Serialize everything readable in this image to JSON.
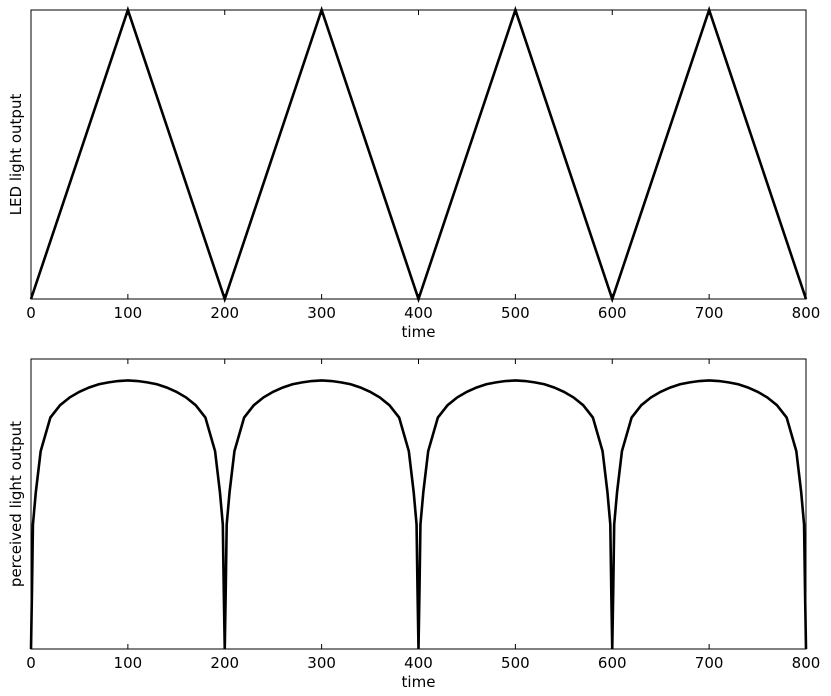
{
  "chart_data": [
    {
      "type": "line",
      "title": "",
      "xlabel": "time",
      "ylabel": "LED light output",
      "xlim": [
        0,
        800
      ],
      "xticks": [
        "0",
        "100",
        "200",
        "300",
        "400",
        "500",
        "600",
        "700",
        "800"
      ],
      "yticks": [],
      "ylim": [
        0,
        1
      ],
      "grid": false,
      "line_color": "#000000",
      "series": [
        {
          "x": [
            0,
            100,
            200,
            300,
            400,
            500,
            600,
            700,
            800
          ],
          "y": [
            0,
            1,
            0,
            1,
            0,
            1,
            0,
            1,
            0
          ]
        }
      ]
    },
    {
      "type": "line",
      "title": "",
      "xlabel": "time",
      "ylabel": "perceived light output",
      "xlim": [
        0,
        800
      ],
      "xticks": [
        "0",
        "100",
        "200",
        "300",
        "400",
        "500",
        "600",
        "700",
        "800"
      ],
      "yticks": [],
      "ylim": [
        0,
        1.08
      ],
      "grid": false,
      "line_color": "#000000",
      "series": [
        {
          "x": [
            0,
            1,
            2,
            5,
            10,
            20,
            30,
            40,
            50,
            60,
            70,
            80,
            90,
            100,
            110,
            120,
            130,
            140,
            150,
            160,
            170,
            180,
            190,
            195,
            198,
            199,
            200,
            201,
            202,
            205,
            210,
            220,
            230,
            240,
            250,
            260,
            270,
            280,
            290,
            300,
            310,
            320,
            330,
            340,
            350,
            360,
            370,
            380,
            390,
            395,
            398,
            399,
            400,
            401,
            402,
            405,
            410,
            420,
            430,
            440,
            450,
            460,
            470,
            480,
            490,
            500,
            510,
            520,
            530,
            540,
            550,
            560,
            570,
            580,
            590,
            595,
            598,
            599,
            600,
            601,
            602,
            605,
            610,
            620,
            630,
            640,
            650,
            660,
            670,
            680,
            690,
            700,
            710,
            720,
            730,
            740,
            750,
            760,
            770,
            780,
            790,
            795,
            798,
            799,
            800
          ],
          "y": [
            0,
            0.215,
            0.464,
            0.585,
            0.737,
            0.862,
            0.908,
            0.937,
            0.958,
            0.974,
            0.986,
            0.993,
            0.998,
            1.0,
            0.998,
            0.993,
            0.986,
            0.974,
            0.958,
            0.937,
            0.908,
            0.862,
            0.737,
            0.585,
            0.464,
            0.215,
            0,
            0.215,
            0.464,
            0.585,
            0.737,
            0.862,
            0.908,
            0.937,
            0.958,
            0.974,
            0.986,
            0.993,
            0.998,
            1.0,
            0.998,
            0.993,
            0.986,
            0.974,
            0.958,
            0.937,
            0.908,
            0.862,
            0.737,
            0.585,
            0.464,
            0.215,
            0,
            0.215,
            0.464,
            0.585,
            0.737,
            0.862,
            0.908,
            0.937,
            0.958,
            0.974,
            0.986,
            0.993,
            0.998,
            1.0,
            0.998,
            0.993,
            0.986,
            0.974,
            0.958,
            0.937,
            0.908,
            0.862,
            0.737,
            0.585,
            0.464,
            0.215,
            0,
            0.215,
            0.464,
            0.585,
            0.737,
            0.862,
            0.908,
            0.937,
            0.958,
            0.974,
            0.986,
            0.993,
            0.998,
            1.0,
            0.998,
            0.993,
            0.986,
            0.974,
            0.958,
            0.937,
            0.908,
            0.862,
            0.737,
            0.585,
            0.464,
            0.215,
            0
          ]
        }
      ]
    }
  ]
}
